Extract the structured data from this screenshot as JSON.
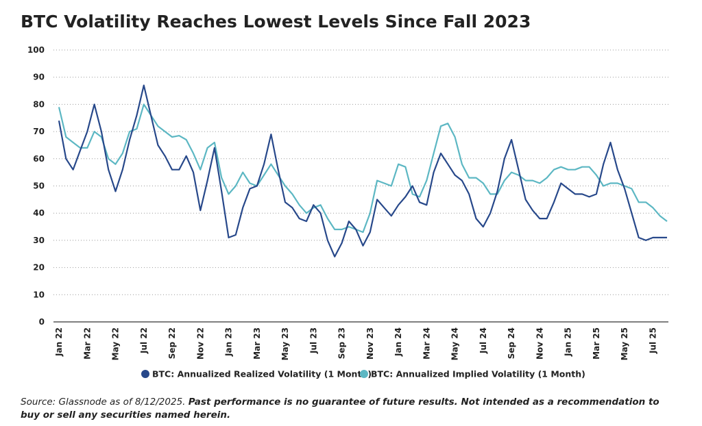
{
  "chart_data": {
    "type": "line",
    "title": "BTC Volatility Reaches Lowest Levels Since Fall 2023",
    "categories": [
      "Jan 22",
      null,
      null,
      null,
      "Mar 22",
      null,
      null,
      null,
      "May 22",
      null,
      null,
      null,
      "Jul 22",
      null,
      null,
      null,
      "Sep 22",
      null,
      null,
      null,
      "Nov 22",
      null,
      null,
      null,
      "Jan 23",
      null,
      null,
      null,
      "Mar 23",
      null,
      null,
      null,
      "May 23",
      null,
      null,
      null,
      "Jul 23",
      null,
      null,
      null,
      "Sep 23",
      null,
      null,
      null,
      "Nov 23",
      null,
      null,
      null,
      "Jan 24",
      null,
      null,
      null,
      "Mar 24",
      null,
      null,
      null,
      "May 24",
      null,
      null,
      null,
      "Jul 24",
      null,
      null,
      null,
      "Sep 24",
      null,
      null,
      null,
      "Nov 24",
      null,
      null,
      null,
      "Jan 25",
      null,
      null,
      null,
      "Mar 25",
      null,
      null,
      null,
      "May 25",
      null,
      null,
      null,
      "Jul 25",
      null,
      null
    ],
    "series": [
      {
        "name": "BTC: Annualized Realized Volatility (1 Month)",
        "color": "#27488a",
        "values": [
          74,
          60,
          56,
          63,
          70,
          80,
          70,
          56,
          48,
          56,
          67,
          76,
          87,
          76,
          65,
          61,
          56,
          56,
          61,
          55,
          41,
          52,
          64,
          48,
          31,
          32,
          42,
          49,
          50,
          58,
          69,
          56,
          44,
          42,
          38,
          37,
          43,
          40,
          30,
          24,
          29,
          37,
          34,
          28,
          33,
          45,
          42,
          39,
          43,
          46,
          50,
          44,
          43,
          55,
          62,
          58,
          54,
          52,
          47,
          38,
          35,
          40,
          48,
          60,
          67,
          56,
          45,
          41,
          38,
          38,
          44,
          51,
          49,
          47,
          47,
          46,
          47,
          58,
          66,
          56,
          49,
          40,
          31,
          30,
          31,
          31,
          31
        ]
      },
      {
        "name": "BTC: Annualized Implied Volatility (1 Month)",
        "color": "#5cb7c3",
        "values": [
          79,
          68,
          66,
          64,
          64,
          70,
          68,
          60,
          58,
          62,
          70,
          71,
          80,
          76,
          72,
          70,
          68,
          68.5,
          67,
          62,
          56,
          64,
          66,
          53,
          47,
          50,
          55,
          51,
          50,
          54,
          58,
          54,
          50,
          47,
          43,
          40,
          42,
          43,
          38,
          34,
          34,
          35,
          34,
          33,
          40,
          52,
          51,
          50,
          58,
          57,
          47,
          46,
          52,
          62,
          72,
          73,
          68,
          58,
          53,
          53,
          51,
          47,
          47,
          52,
          55,
          54,
          52,
          52,
          51,
          53,
          56,
          57,
          56,
          56,
          57,
          57,
          54,
          50,
          51,
          51,
          50,
          49,
          44,
          44,
          42,
          39,
          37
        ]
      }
    ],
    "ylim": [
      0,
      100
    ],
    "yticks": [
      0,
      10,
      20,
      30,
      40,
      50,
      60,
      70,
      80,
      90,
      100
    ],
    "grid": true,
    "legend": "bottom"
  },
  "footer": {
    "source": "Source: Glassnode as of 8/12/2025.",
    "disclaimer": "Past performance is no guarantee of future results. Not intended as a recommendation to buy or sell any securities named herein."
  }
}
